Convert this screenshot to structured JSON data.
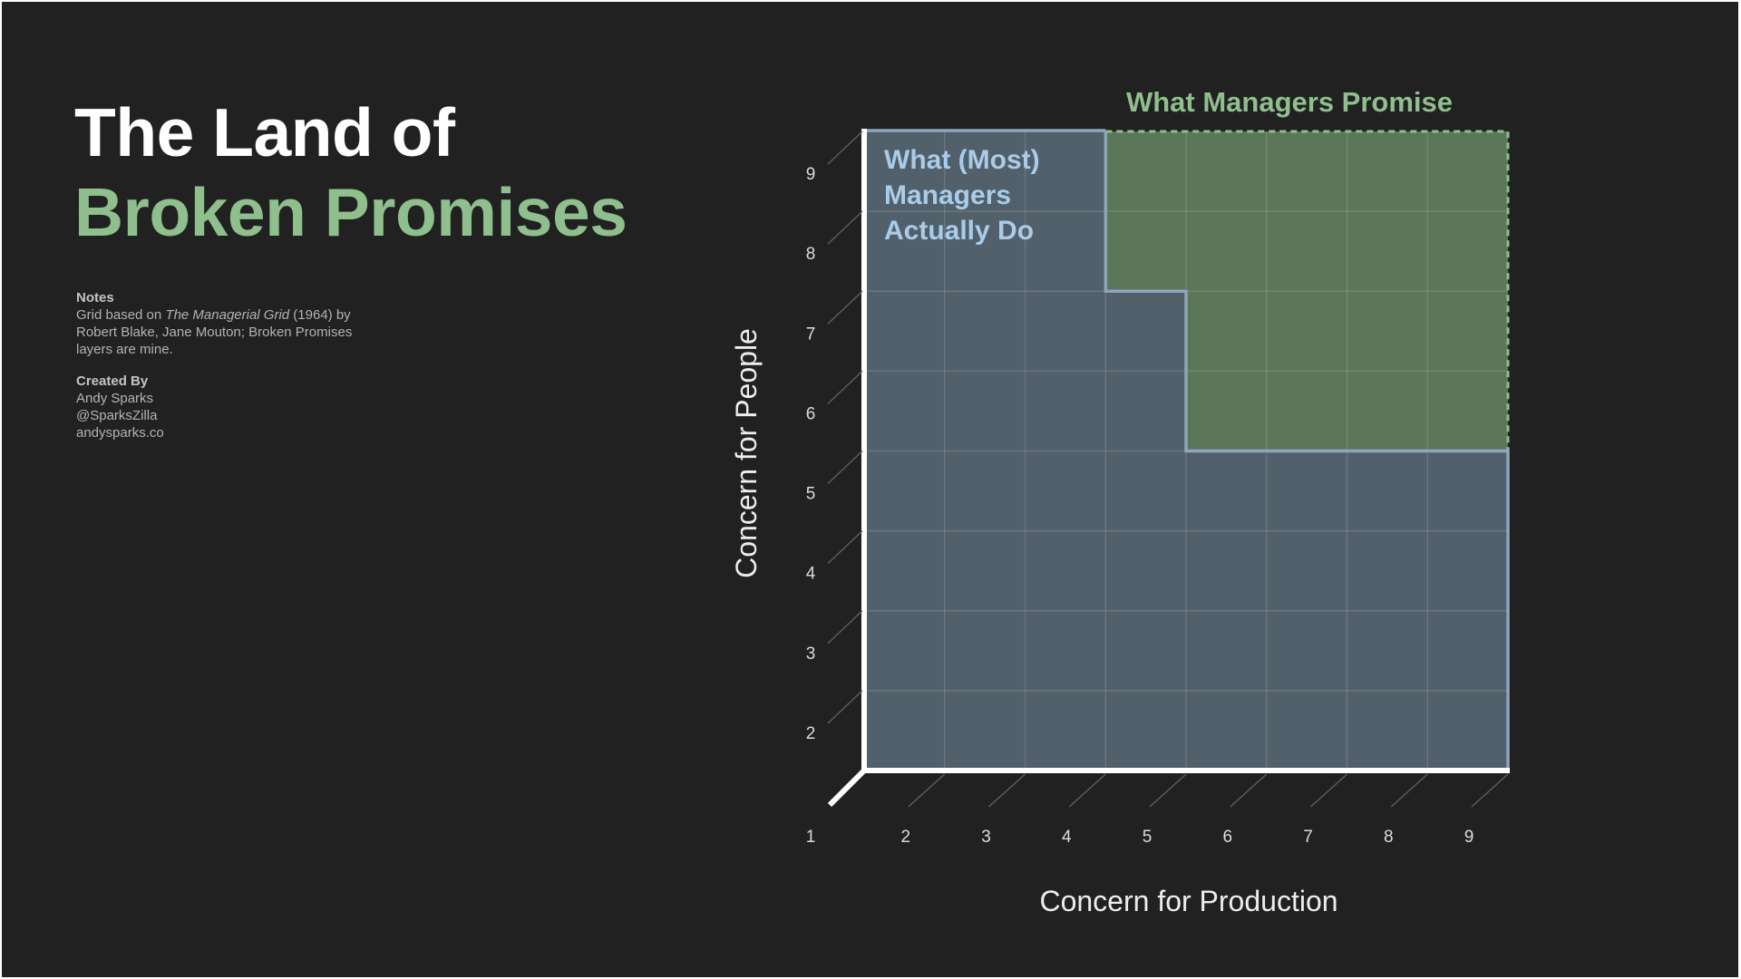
{
  "title": {
    "line1": "The Land of",
    "line2": "Broken Promises"
  },
  "notes": {
    "heading": "Notes",
    "text_before": "Grid based on ",
    "book_title": "The Managerial Grid",
    "text_after": " (1964) by Robert Blake, Jane Mouton; Broken Promises layers are mine.",
    "created_heading": "Created By",
    "author": "Andy Sparks",
    "handle": "@SparksZilla",
    "website": "andysparks.co"
  },
  "chart_data": {
    "type": "grid-diagram",
    "xlabel": "Concern for Production",
    "ylabel": "Concern for People",
    "origin_label": "1",
    "x_ticks": [
      "2",
      "3",
      "4",
      "5",
      "6",
      "7",
      "8",
      "9"
    ],
    "y_ticks": [
      "2",
      "3",
      "4",
      "5",
      "6",
      "7",
      "8",
      "9"
    ],
    "xlim": [
      1,
      9
    ],
    "ylim": [
      1,
      9
    ],
    "regions": [
      {
        "name": "What (Most) Managers Actually Do",
        "label_lines": [
          "What (Most)",
          "Managers",
          "Actually Do"
        ],
        "color": "#aacce8",
        "fill": "#52606b",
        "outline": [
          [
            1,
            1
          ],
          [
            9,
            1
          ],
          [
            9,
            5
          ],
          [
            5,
            5
          ],
          [
            5,
            7
          ],
          [
            4,
            7
          ],
          [
            4,
            9
          ],
          [
            1,
            9
          ]
        ]
      },
      {
        "name": "What Managers Promise",
        "label_lines": [
          "What Managers Promise"
        ],
        "color": "#8fbf8c",
        "fill": "#5b7659",
        "outline": [
          [
            4,
            9
          ],
          [
            9,
            9
          ],
          [
            9,
            5
          ],
          [
            5,
            5
          ],
          [
            5,
            7
          ],
          [
            4,
            7
          ]
        ]
      }
    ]
  }
}
